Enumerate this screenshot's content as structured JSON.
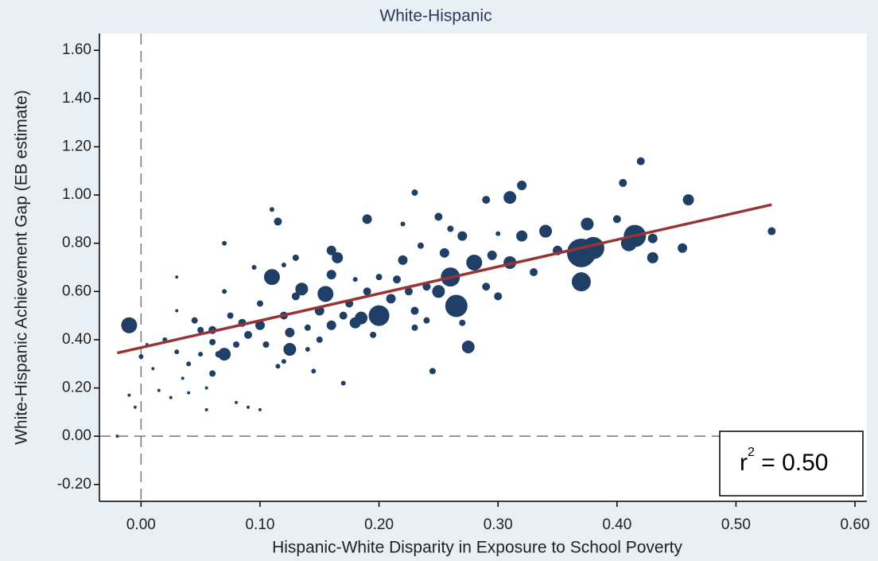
{
  "chart_data": {
    "type": "scatter",
    "title": "White-Hispanic",
    "x_label": "Hispanic-White Disparity in Exposure to School Poverty",
    "y_label": "White-Hispanic Achievement Gap (EB estimate)",
    "color": "#1f3f66",
    "xlim": [
      -0.035,
      0.61
    ],
    "ylim": [
      -0.27,
      1.67
    ],
    "xticks": [
      {
        "value": 0,
        "label": "0.00"
      },
      {
        "value": 0.1,
        "label": "0.10"
      },
      {
        "value": 0.2,
        "label": "0.20"
      },
      {
        "value": 0.3,
        "label": "0.30"
      },
      {
        "value": 0.4,
        "label": "0.40"
      },
      {
        "value": 0.5,
        "label": "0.50"
      },
      {
        "value": 0.6,
        "label": "0.60"
      }
    ],
    "yticks": [
      {
        "value": -0.2,
        "label": "-0.20"
      },
      {
        "value": 0,
        "label": "0.00"
      },
      {
        "value": 0.2,
        "label": "0.20"
      },
      {
        "value": 0.4,
        "label": "0.40"
      },
      {
        "value": 0.6,
        "label": "0.60"
      },
      {
        "value": 0.8,
        "label": "0.80"
      },
      {
        "value": 1,
        "label": "1.00"
      },
      {
        "value": 1.2,
        "label": "1.20"
      },
      {
        "value": 1.4,
        "label": "1.40"
      },
      {
        "value": 1.6,
        "label": "1.60"
      }
    ],
    "x": [
      -0.02,
      -0.01,
      -0.01,
      -0.005,
      0.0,
      0.005,
      0.01,
      0.015,
      0.02,
      0.025,
      0.03,
      0.03,
      0.03,
      0.035,
      0.04,
      0.045,
      0.05,
      0.05,
      0.055,
      0.055,
      0.06,
      0.06,
      0.065,
      0.07,
      0.07,
      0.07,
      0.075,
      0.08,
      0.085,
      0.09,
      0.095,
      0.1,
      0.1,
      0.105,
      0.11,
      0.11,
      0.115,
      0.12,
      0.12,
      0.125,
      0.125,
      0.13,
      0.13,
      0.135,
      0.14,
      0.145,
      0.15,
      0.155,
      0.16,
      0.16,
      0.16,
      0.165,
      0.17,
      0.17,
      0.175,
      0.18,
      0.185,
      0.19,
      0.19,
      0.195,
      0.2,
      0.21,
      0.215,
      0.22,
      0.225,
      0.23,
      0.23,
      0.235,
      0.24,
      0.245,
      0.25,
      0.25,
      0.255,
      0.26,
      0.265,
      0.27,
      0.275,
      0.28,
      0.29,
      0.295,
      0.3,
      0.31,
      0.31,
      0.32,
      0.32,
      0.33,
      0.34,
      0.35,
      0.37,
      0.37,
      0.375,
      0.38,
      0.4,
      0.405,
      0.41,
      0.415,
      0.42,
      0.43,
      0.43,
      0.455,
      0.46,
      0.53,
      0.08,
      0.09,
      0.1,
      0.115,
      0.14,
      0.18,
      0.2,
      0.22,
      0.23,
      0.24,
      0.26,
      0.27,
      0.29,
      0.3,
      0.15,
      0.12,
      0.06,
      0.04
    ],
    "values": [
      0.0,
      0.46,
      0.17,
      0.12,
      0.33,
      0.38,
      0.28,
      0.19,
      0.4,
      0.16,
      0.35,
      0.52,
      0.66,
      0.24,
      0.3,
      0.48,
      0.44,
      0.34,
      0.2,
      0.11,
      0.44,
      0.26,
      0.34,
      0.34,
      0.8,
      0.6,
      0.5,
      0.38,
      0.47,
      0.42,
      0.7,
      0.55,
      0.46,
      0.38,
      0.66,
      0.94,
      0.89,
      0.5,
      0.31,
      0.43,
      0.36,
      0.74,
      0.58,
      0.61,
      0.45,
      0.27,
      0.52,
      0.59,
      0.77,
      0.67,
      0.46,
      0.74,
      0.5,
      0.22,
      0.55,
      0.47,
      0.49,
      0.9,
      0.6,
      0.42,
      0.5,
      0.57,
      0.65,
      0.73,
      0.6,
      1.01,
      0.52,
      0.79,
      0.48,
      0.27,
      0.6,
      0.91,
      0.76,
      0.66,
      0.54,
      0.83,
      0.37,
      0.72,
      0.98,
      0.75,
      0.58,
      0.72,
      0.99,
      1.04,
      0.83,
      0.68,
      0.85,
      0.77,
      0.76,
      0.64,
      0.88,
      0.78,
      0.9,
      1.05,
      0.8,
      0.83,
      1.14,
      0.74,
      0.82,
      0.78,
      0.98,
      0.85,
      0.14,
      0.12,
      0.11,
      0.29,
      0.36,
      0.65,
      0.66,
      0.88,
      0.45,
      0.62,
      0.86,
      0.47,
      0.62,
      0.84,
      0.4,
      0.71,
      0.39,
      0.18
    ],
    "sizes": [
      1,
      5,
      1,
      1,
      1.5,
      1,
      1,
      1,
      1.5,
      1,
      1.5,
      1,
      1,
      1,
      1.5,
      2,
      2,
      1.5,
      1,
      1,
      2.5,
      2,
      2,
      4,
      1.5,
      1.5,
      2,
      2,
      2.5,
      2.5,
      1.5,
      2,
      3,
      2,
      5,
      1.5,
      2.5,
      2.5,
      1.5,
      3,
      4,
      2,
      2.5,
      4,
      2,
      1.5,
      3,
      5,
      3,
      3,
      3,
      3.5,
      2.5,
      1.5,
      2.5,
      3.5,
      4,
      3,
      2.5,
      2,
      6.5,
      3,
      2.5,
      3,
      2.5,
      2,
      2.5,
      2,
      2,
      2,
      4,
      2.5,
      3,
      6,
      7,
      3,
      4,
      5,
      2.5,
      3,
      2.5,
      4,
      4,
      3,
      3.5,
      2.5,
      4,
      3,
      9,
      6,
      4,
      7,
      2.5,
      2.5,
      5,
      7,
      2.5,
      3.5,
      3,
      3,
      3.5,
      2.5,
      1,
      1,
      1,
      1.5,
      1.5,
      1.5,
      2,
      1.5,
      2,
      2.5,
      2,
      2,
      2.5,
      1.5,
      2,
      1.5,
      2,
      1
    ],
    "fit": {
      "x": [
        -0.02,
        0.53
      ],
      "y": [
        0.345,
        0.96
      ],
      "color": "#953535"
    },
    "reference_lines": {
      "x": 0,
      "y": 0
    },
    "annotation": {
      "base": "r",
      "sup": "2",
      "rest": " = 0.50"
    }
  }
}
